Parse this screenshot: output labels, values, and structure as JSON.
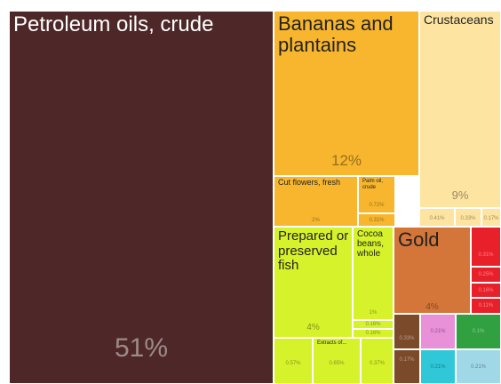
{
  "chart_data": {
    "type": "treemap",
    "names": [
      "Petroleum oils, crude",
      "Bananas and plantains",
      "Crustaceans",
      "Cut flowers, fresh",
      "Palm oil, crude",
      null,
      null,
      null,
      null,
      "Prepared or preserved fish",
      "Cocoa beans, whole",
      null,
      null,
      "Gold",
      null,
      null,
      null,
      null,
      null,
      "Extracts of...",
      null,
      null,
      null,
      null,
      null,
      null,
      null
    ],
    "values": [
      51,
      12,
      9,
      2,
      0.72,
      0.31,
      0.41,
      0.33,
      0.17,
      4,
      1,
      0.16,
      0.16,
      4,
      0.31,
      0.25,
      0.16,
      0.11,
      0.57,
      0.65,
      0.37,
      0.33,
      0.17,
      0.21,
      0.21,
      0.1,
      0.21
    ],
    "value_labels": [
      "51%",
      "12%",
      "9%",
      "2%",
      "0.72%",
      "0.31%",
      "0.41%",
      "0.33%",
      "0.17%",
      "4%",
      "1%",
      "0.16%",
      "0.16%",
      "4%",
      "0.31%",
      "0.25%",
      "0.16%",
      "0.11%",
      "0.57%",
      "0.65%",
      "0.37%",
      "0.33%",
      "0.17%",
      "0.21%",
      "0.21%",
      "0.1%",
      "0.21%"
    ],
    "colors": [
      "#4e2828",
      "#f7b62e",
      "#fde4a0",
      "#f7b62e",
      "#f7b62e",
      "#f7b62e",
      "#fde4a0",
      "#fde4a0",
      "#fde4a0",
      "#d6f22a",
      "#d6f22a",
      "#d6f22a",
      "#d6f22a",
      "#d4763a",
      "#e8202a",
      "#e8202a",
      "#e8202a",
      "#e8202a",
      "#d6f22a",
      "#d6f22a",
      "#d6f22a",
      "#7a4a2a",
      "#7a4a2a",
      "#e890d8",
      "#30c8d8",
      "#30a040",
      "#a0d8e8"
    ]
  }
}
